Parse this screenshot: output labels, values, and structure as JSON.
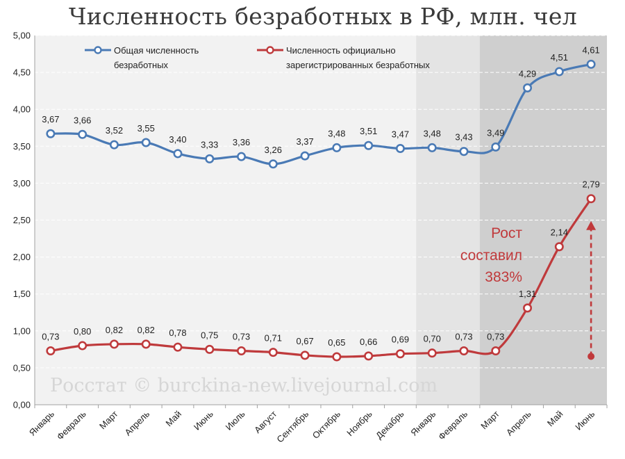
{
  "chart_data": {
    "type": "line",
    "title": "Численность безработных в РФ, млн. чел",
    "categories": [
      "Январь",
      "Февраль",
      "Март",
      "Апрель",
      "Май",
      "Июнь",
      "Июль",
      "Август",
      "Сентябрь",
      "Октябрь",
      "Ноябрь",
      "Декабрь",
      "Январь",
      "Февраль",
      "Март",
      "Апрель",
      "Май",
      "Июнь"
    ],
    "series": [
      {
        "name": "Общая численность безработных",
        "values": [
          3.67,
          3.66,
          3.52,
          3.55,
          3.4,
          3.33,
          3.36,
          3.26,
          3.37,
          3.48,
          3.51,
          3.47,
          3.48,
          3.43,
          3.49,
          4.29,
          4.51,
          4.61
        ],
        "labels": [
          "3,67",
          "3,66",
          "3,52",
          "3,55",
          "3,40",
          "3,33",
          "3,36",
          "3,26",
          "3,37",
          "3,48",
          "3,51",
          "3,47",
          "3,48",
          "3,43",
          "3,49",
          "4,29",
          "4,51",
          "4,61"
        ],
        "color": "#4a7ab5"
      },
      {
        "name": "Численность официально зарегистрированных безработных",
        "values": [
          0.73,
          0.8,
          0.82,
          0.82,
          0.78,
          0.75,
          0.73,
          0.71,
          0.67,
          0.65,
          0.66,
          0.69,
          0.7,
          0.73,
          0.73,
          1.31,
          2.14,
          2.79
        ],
        "labels": [
          "0,73",
          "0,80",
          "0,82",
          "0,82",
          "0,78",
          "0,75",
          "0,73",
          "0,71",
          "0,67",
          "0,65",
          "0,66",
          "0,69",
          "0,70",
          "0,73",
          "0,73",
          "1,31",
          "2,14",
          "2,79"
        ],
        "color": "#bf3a3c"
      }
    ],
    "ylim": [
      0,
      5
    ],
    "yticks": [
      "0,00",
      "0,50",
      "1,00",
      "1,50",
      "2,00",
      "2,50",
      "3,00",
      "3,50",
      "4,00",
      "4,50",
      "5,00"
    ],
    "grid": true,
    "legend_position": "top-left",
    "legend_lines": [
      [
        "Общая численность",
        "безработных"
      ],
      [
        "Численность официально",
        "зарегистрированных безработных"
      ]
    ],
    "annotation": {
      "lines": [
        "Рост",
        "составил",
        "383%"
      ]
    },
    "watermark": "Росстат © burckina-new.livejournal.com",
    "colors": {
      "plot_bg": "#f2f2f2",
      "shade_light": "#e4e4e4",
      "shade_dark": "#cfcfcf",
      "accent": "#c0393b"
    }
  }
}
